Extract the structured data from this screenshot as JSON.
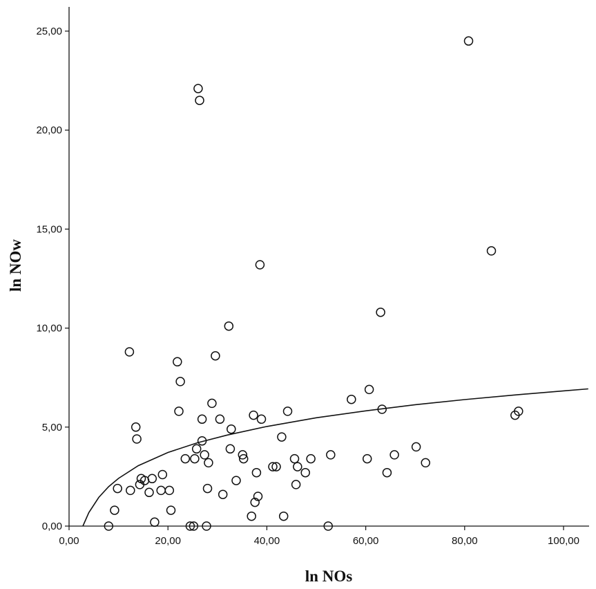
{
  "chart_data": {
    "type": "scatter",
    "title": "",
    "xlabel": "ln NOs",
    "ylabel": "ln NOw",
    "xlim": [
      0,
      105
    ],
    "ylim": [
      0,
      26.5
    ],
    "x_ticks": [
      {
        "value": 0,
        "label": "0,00"
      },
      {
        "value": 20,
        "label": "20,00"
      },
      {
        "value": 40,
        "label": "40,00"
      },
      {
        "value": 60,
        "label": "60,00"
      },
      {
        "value": 80,
        "label": "80,00"
      },
      {
        "value": 100,
        "label": "100,00"
      }
    ],
    "y_ticks": [
      {
        "value": 0,
        "label": "0,00"
      },
      {
        "value": 5,
        "label": "5,00"
      },
      {
        "value": 10,
        "label": "10,00"
      },
      {
        "value": 15,
        "label": "15,00"
      },
      {
        "value": 20,
        "label": "20,00"
      },
      {
        "value": 25,
        "label": "25,00"
      }
    ],
    "grid": false,
    "legend": "none",
    "series": [
      {
        "marker": "open-circle",
        "points": [
          {
            "x": 8.0,
            "y": 0.0
          },
          {
            "x": 9.2,
            "y": 0.8
          },
          {
            "x": 9.8,
            "y": 1.9
          },
          {
            "x": 12.2,
            "y": 8.8
          },
          {
            "x": 12.4,
            "y": 1.8
          },
          {
            "x": 13.5,
            "y": 5.0
          },
          {
            "x": 13.7,
            "y": 4.4
          },
          {
            "x": 14.3,
            "y": 2.1
          },
          {
            "x": 14.6,
            "y": 2.4
          },
          {
            "x": 15.3,
            "y": 2.3
          },
          {
            "x": 16.2,
            "y": 1.7
          },
          {
            "x": 16.8,
            "y": 2.4
          },
          {
            "x": 17.3,
            "y": 0.2
          },
          {
            "x": 18.6,
            "y": 1.8
          },
          {
            "x": 18.9,
            "y": 2.6
          },
          {
            "x": 20.3,
            "y": 1.8
          },
          {
            "x": 20.6,
            "y": 0.8
          },
          {
            "x": 21.9,
            "y": 8.3
          },
          {
            "x": 22.2,
            "y": 5.8
          },
          {
            "x": 22.5,
            "y": 7.3
          },
          {
            "x": 23.5,
            "y": 3.4
          },
          {
            "x": 24.5,
            "y": 0.0
          },
          {
            "x": 25.2,
            "y": 0.0
          },
          {
            "x": 25.4,
            "y": 3.4
          },
          {
            "x": 25.8,
            "y": 3.9
          },
          {
            "x": 26.1,
            "y": 22.1
          },
          {
            "x": 26.4,
            "y": 21.5
          },
          {
            "x": 26.9,
            "y": 5.4
          },
          {
            "x": 26.9,
            "y": 4.3
          },
          {
            "x": 27.4,
            "y": 3.6
          },
          {
            "x": 27.8,
            "y": 0.0
          },
          {
            "x": 28.0,
            "y": 1.9
          },
          {
            "x": 28.2,
            "y": 3.2
          },
          {
            "x": 28.9,
            "y": 6.2
          },
          {
            "x": 29.6,
            "y": 8.6
          },
          {
            "x": 30.5,
            "y": 5.4
          },
          {
            "x": 31.1,
            "y": 1.6
          },
          {
            "x": 32.3,
            "y": 10.1
          },
          {
            "x": 32.6,
            "y": 3.9
          },
          {
            "x": 32.8,
            "y": 4.9
          },
          {
            "x": 33.8,
            "y": 2.3
          },
          {
            "x": 35.1,
            "y": 3.6
          },
          {
            "x": 35.3,
            "y": 3.4
          },
          {
            "x": 36.9,
            "y": 0.5
          },
          {
            "x": 37.3,
            "y": 5.6
          },
          {
            "x": 37.6,
            "y": 1.2
          },
          {
            "x": 37.9,
            "y": 2.7
          },
          {
            "x": 38.2,
            "y": 1.5
          },
          {
            "x": 38.6,
            "y": 13.2
          },
          {
            "x": 38.9,
            "y": 5.4
          },
          {
            "x": 41.2,
            "y": 3.0
          },
          {
            "x": 41.9,
            "y": 3.0
          },
          {
            "x": 43.0,
            "y": 4.5
          },
          {
            "x": 43.4,
            "y": 0.5
          },
          {
            "x": 44.2,
            "y": 5.8
          },
          {
            "x": 45.6,
            "y": 3.4
          },
          {
            "x": 45.9,
            "y": 2.1
          },
          {
            "x": 46.2,
            "y": 3.0
          },
          {
            "x": 47.8,
            "y": 2.7
          },
          {
            "x": 48.9,
            "y": 3.4
          },
          {
            "x": 52.4,
            "y": 0.0
          },
          {
            "x": 52.9,
            "y": 3.6
          },
          {
            "x": 57.1,
            "y": 6.4
          },
          {
            "x": 60.3,
            "y": 3.4
          },
          {
            "x": 60.7,
            "y": 6.9
          },
          {
            "x": 63.0,
            "y": 10.8
          },
          {
            "x": 63.3,
            "y": 5.9
          },
          {
            "x": 64.3,
            "y": 2.7
          },
          {
            "x": 65.8,
            "y": 3.6
          },
          {
            "x": 70.2,
            "y": 4.0
          },
          {
            "x": 72.1,
            "y": 3.2
          },
          {
            "x": 80.8,
            "y": 24.5
          },
          {
            "x": 85.4,
            "y": 13.9
          },
          {
            "x": 90.2,
            "y": 5.6
          },
          {
            "x": 90.9,
            "y": 5.8
          }
        ]
      }
    ],
    "fit_line": {
      "type": "logarithmic",
      "x_intercept": 2.8,
      "samples": [
        {
          "x": 2.8,
          "y": 0.0
        },
        {
          "x": 4,
          "y": 0.68
        },
        {
          "x": 6,
          "y": 1.45
        },
        {
          "x": 8,
          "y": 1.99
        },
        {
          "x": 10,
          "y": 2.41
        },
        {
          "x": 14,
          "y": 3.05
        },
        {
          "x": 20,
          "y": 3.72
        },
        {
          "x": 26,
          "y": 4.21
        },
        {
          "x": 32,
          "y": 4.6
        },
        {
          "x": 40,
          "y": 5.03
        },
        {
          "x": 50,
          "y": 5.47
        },
        {
          "x": 60,
          "y": 5.82
        },
        {
          "x": 70,
          "y": 6.13
        },
        {
          "x": 80,
          "y": 6.39
        },
        {
          "x": 90,
          "y": 6.62
        },
        {
          "x": 100,
          "y": 6.83
        },
        {
          "x": 105,
          "y": 6.93
        }
      ]
    }
  }
}
